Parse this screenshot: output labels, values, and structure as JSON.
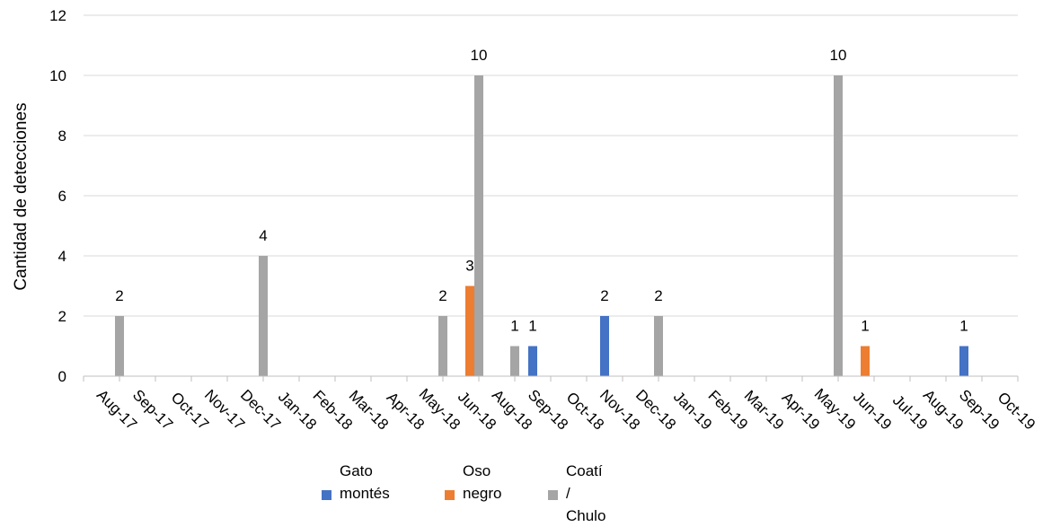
{
  "chart_data": {
    "type": "bar",
    "title": "",
    "xlabel": "",
    "ylabel": "Cantidad de detecciones",
    "ylim": [
      0,
      12
    ],
    "yticks": [
      0,
      2,
      4,
      6,
      8,
      10,
      12
    ],
    "grid": true,
    "legend_position": "bottom",
    "categories": [
      "Aug-17",
      "Sep-17",
      "Oct-17",
      "Nov-17",
      "Dec-17",
      "Jan-18",
      "Feb-18",
      "Mar-18",
      "Apr-18",
      "May-18",
      "Jun-18",
      "Aug-18",
      "Sep-18",
      "Oct-18",
      "Nov-18",
      "Dec-18",
      "Jan-19",
      "Feb-19",
      "Mar-19",
      "Apr-19",
      "May-19",
      "Jun-19",
      "Jul-19",
      "Aug-19",
      "Sep-19",
      "Oct-19"
    ],
    "series": [
      {
        "name": "Gato montés",
        "color": "#4472C4",
        "values": [
          0,
          0,
          0,
          0,
          0,
          0,
          0,
          0,
          0,
          0,
          0,
          0,
          1,
          0,
          2,
          0,
          0,
          0,
          0,
          0,
          0,
          0,
          0,
          0,
          1,
          0
        ]
      },
      {
        "name": "Oso negro",
        "color": "#ED7D31",
        "values": [
          0,
          0,
          0,
          0,
          0,
          0,
          0,
          0,
          0,
          0,
          3,
          0,
          0,
          0,
          0,
          0,
          0,
          0,
          0,
          0,
          0,
          1,
          0,
          0,
          0,
          0
        ]
      },
      {
        "name": "Coatí / Chulo",
        "color": "#A5A5A5",
        "values": [
          2,
          0,
          0,
          0,
          4,
          0,
          0,
          0,
          0,
          2,
          10,
          1,
          0,
          0,
          0,
          2,
          0,
          0,
          0,
          0,
          10,
          0,
          0,
          0,
          0,
          0
        ]
      }
    ]
  },
  "legend": {
    "items": [
      {
        "label": "Gato\nmontés",
        "color": "#4472C4"
      },
      {
        "label": "Oso\nnegro",
        "color": "#ED7D31"
      },
      {
        "label": "Coatí /\nChulo",
        "color": "#A5A5A5"
      }
    ]
  }
}
